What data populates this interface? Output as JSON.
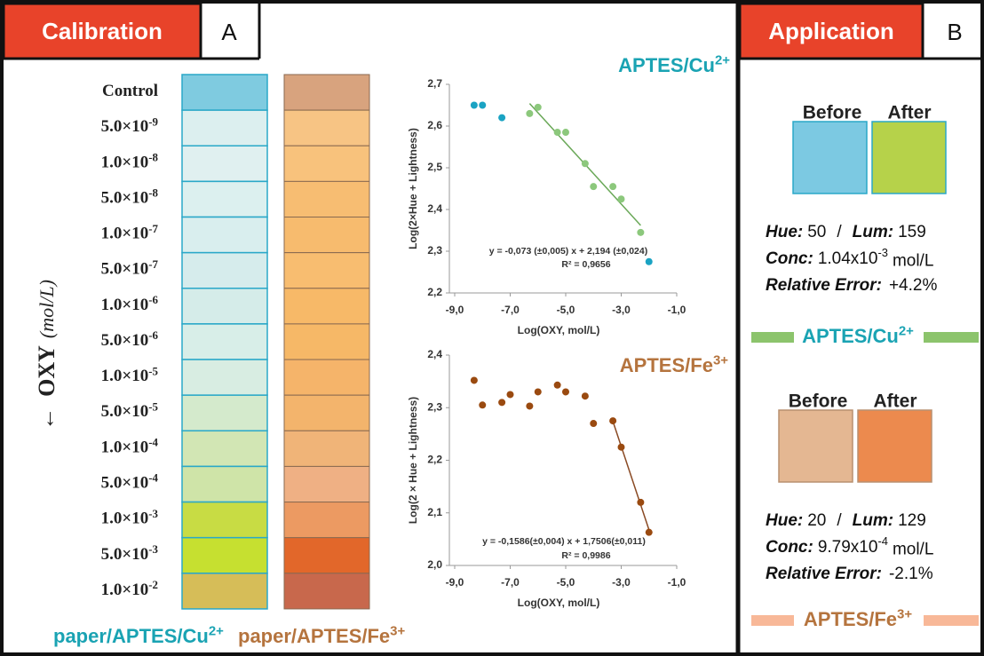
{
  "panel_a": {
    "label": "Calibration",
    "letter": "A",
    "axis_label": {
      "arrow": "←",
      "text": "OXY",
      "unit": "(mol/L)"
    },
    "concentrations": [
      {
        "text": "Control"
      },
      {
        "text": "5.0×10",
        "sup": "-9"
      },
      {
        "text": "1.0×10",
        "sup": "-8"
      },
      {
        "text": "5.0×10",
        "sup": "-8"
      },
      {
        "text": "1.0×10",
        "sup": "-7"
      },
      {
        "text": "5.0×10",
        "sup": "-7"
      },
      {
        "text": "1.0×10",
        "sup": "-6"
      },
      {
        "text": "5.0×10",
        "sup": "-6"
      },
      {
        "text": "1.0×10",
        "sup": "-5"
      },
      {
        "text": "5.0×10",
        "sup": "-5"
      },
      {
        "text": "1.0×10",
        "sup": "-4"
      },
      {
        "text": "5.0×10",
        "sup": "-4"
      },
      {
        "text": "1.0×10",
        "sup": "-3"
      },
      {
        "text": "5.0×10",
        "sup": "-3"
      },
      {
        "text": "1.0×10",
        "sup": "-2"
      }
    ],
    "cu_strip_colors": [
      "#7fcbe0",
      "#dcefef",
      "#e0f0f0",
      "#dcf0ef",
      "#d9eeee",
      "#d6ecec",
      "#d5ece9",
      "#d8eee8",
      "#d8ede2",
      "#d4eacc",
      "#d2e6b4",
      "#cfe4a8",
      "#c8dc44",
      "#c6e030",
      "#d6bd58"
    ],
    "fe_strip_colors": [
      "#d8a37e",
      "#f7c484",
      "#f8c27c",
      "#f7bd72",
      "#f7bb6e",
      "#f8bd70",
      "#f7b968",
      "#f6b867",
      "#f5b46a",
      "#f3b46c",
      "#f0b478",
      "#efb084",
      "#ec9a62",
      "#e2672a",
      "#c8684c"
    ],
    "footer": [
      {
        "text": "paper/APTES/Cu",
        "sup": "2+",
        "color": "#1aa3b3"
      },
      {
        "text": "paper/APTES/Fe",
        "sup": "3+",
        "color": "#b5743e"
      }
    ]
  },
  "chart_data": [
    {
      "type": "scatter",
      "title": {
        "text": "APTES/Cu",
        "sup": "2+"
      },
      "title_color": "#1aa3b3",
      "xlabel": "Log(OXY, mol/L)",
      "ylabel": "Log(2×Hue + Lightness)",
      "xlim": [
        -9,
        -1
      ],
      "xticks": [
        {
          "value": -9,
          "label": "-9,0"
        },
        {
          "value": -7,
          "label": "-7,0"
        },
        {
          "value": -5,
          "label": "-5,0"
        },
        {
          "value": -3,
          "label": "-3,0"
        },
        {
          "value": -1,
          "label": "-1,0"
        }
      ],
      "ylim": [
        2.2,
        2.7
      ],
      "yticks": [
        {
          "value": 2.2,
          "label": "2,2"
        },
        {
          "value": 2.3,
          "label": "2,3"
        },
        {
          "value": 2.4,
          "label": "2,4"
        },
        {
          "value": 2.5,
          "label": "2,5"
        },
        {
          "value": 2.6,
          "label": "2,6"
        },
        {
          "value": 2.7,
          "label": "2,7"
        }
      ],
      "series": [
        {
          "color": "#1aa3c3",
          "mode": "points",
          "x": [
            -8.3,
            -8.0,
            -7.3,
            -2.0
          ],
          "values": [
            2.65,
            2.65,
            2.62,
            2.275
          ]
        },
        {
          "color": "#8cc87c",
          "mode": "points",
          "x": [
            -6.3,
            -6.0,
            -5.3,
            -5.0,
            -4.3,
            -4.0,
            -3.3,
            -3.0,
            -2.3
          ],
          "values": [
            2.63,
            2.645,
            2.585,
            2.585,
            2.51,
            2.455,
            2.455,
            2.425,
            2.345
          ]
        },
        {
          "color": "#6aa858",
          "mode": "line",
          "x": [
            -6.3,
            -2.3
          ],
          "values": [
            2.654,
            2.362
          ]
        }
      ],
      "annotations": [
        "y = -0,073 (±0,005) x + 2,194 (±0,024)",
        "R² = 0,9656"
      ]
    },
    {
      "type": "scatter",
      "title": {
        "text": "APTES/Fe",
        "sup": "3+"
      },
      "title_color": "#b5743e",
      "xlabel": "Log(OXY, mol/L)",
      "ylabel": "Log(2 × Hue + Lightness)",
      "xlim": [
        -9,
        -1
      ],
      "xticks": [
        {
          "value": -9,
          "label": "-9,0"
        },
        {
          "value": -7,
          "label": "-7,0"
        },
        {
          "value": -5,
          "label": "-5,0"
        },
        {
          "value": -3,
          "label": "-3,0"
        },
        {
          "value": -1,
          "label": "-1,0"
        }
      ],
      "ylim": [
        2.0,
        2.4
      ],
      "yticks": [
        {
          "value": 2.0,
          "label": "2,0"
        },
        {
          "value": 2.1,
          "label": "2,1"
        },
        {
          "value": 2.2,
          "label": "2,2"
        },
        {
          "value": 2.3,
          "label": "2,3"
        },
        {
          "value": 2.4,
          "label": "2,4"
        }
      ],
      "series": [
        {
          "color": "#9a4a10",
          "mode": "points",
          "x": [
            -8.3,
            -8.0,
            -7.3,
            -7.0,
            -6.3,
            -6.0,
            -5.3,
            -5.0,
            -4.3,
            -4.0,
            -3.3,
            -3.0,
            -2.3,
            -2.0
          ],
          "values": [
            2.352,
            2.305,
            2.31,
            2.325,
            2.303,
            2.33,
            2.343,
            2.33,
            2.322,
            2.27,
            2.275,
            2.225,
            2.12,
            2.063
          ]
        },
        {
          "color": "#8a4a24",
          "mode": "line",
          "x": [
            -3.3,
            -2.0
          ],
          "values": [
            2.274,
            2.068
          ]
        }
      ],
      "annotations": [
        "y = -0,1586(±0,004) x + 1,7506(±0,011)",
        "R² = 0,9986"
      ]
    }
  ],
  "panel_b": {
    "label": "Application",
    "letter": "B",
    "samples": [
      {
        "before": "Before",
        "after": "After",
        "before_color": "#7cc9e2",
        "after_color": "#b6d24a",
        "hue_label": "Hue:",
        "hue": "50",
        "sep": "/",
        "lum_label": "Lum:",
        "lum": "159",
        "conc_label": "Conc:",
        "conc": {
          "text": "1.04x10",
          "sup": "-3"
        },
        "conc_unit": "mol/L",
        "error_label": "Relative Error:",
        "error": "+4.2%",
        "banner": {
          "text": "APTES/Cu",
          "sup": "2+"
        },
        "banner_color": "#8cc46c",
        "banner_text_color": "#1aa3b3"
      },
      {
        "before": "Before",
        "after": "After",
        "before_color": "#e4b792",
        "after_color": "#ec8a4e",
        "hue_label": "Hue:",
        "hue": "20",
        "sep": "/",
        "lum_label": "Lum:",
        "lum": "129",
        "conc_label": "Conc:",
        "conc": {
          "text": "9.79x10",
          "sup": "-4"
        },
        "conc_unit": "mol/L",
        "error_label": "Relative Error:",
        "error": "-2.1%",
        "banner": {
          "text": "APTES/Fe",
          "sup": "3+"
        },
        "banner_color": "#f8b898",
        "banner_text_color": "#b5743e"
      }
    ]
  }
}
